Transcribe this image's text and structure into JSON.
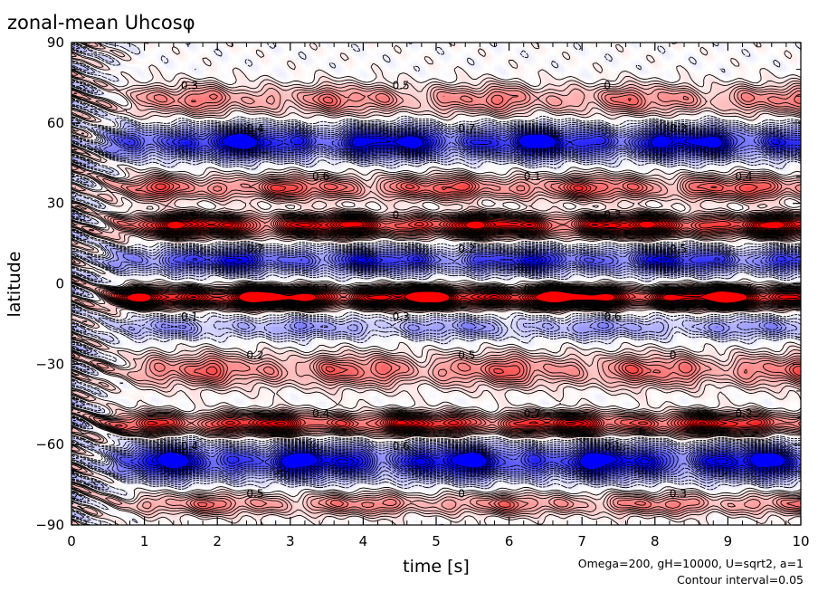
{
  "chart_data": {
    "type": "heatmap",
    "title": "zonal-mean Uhcosφ",
    "xlabel": "time [s]",
    "ylabel": "latitude",
    "xlim": [
      0,
      10
    ],
    "ylim": [
      -90,
      90
    ],
    "x_ticks": [
      "0",
      "1",
      "2",
      "3",
      "4",
      "5",
      "6",
      "7",
      "8",
      "9",
      "10"
    ],
    "y_ticks": [
      "90",
      "60",
      "30",
      "0",
      "−30",
      "−60",
      "−90"
    ],
    "annotations": [
      "Omega=200, gH=10000, U=sqrt2, a=1",
      "Contour interval=0.05"
    ],
    "contour_labels": [
      "0.1",
      "0.2",
      "0.3",
      "0.4",
      "0.5",
      "0.6",
      "0.7",
      "0"
    ],
    "colors": {
      "positive": "#ff0000",
      "negative": "#0000ff",
      "neutral": "#ffffff",
      "contour": "#000000"
    },
    "bands": [
      {
        "lat": 69,
        "width": 5.5,
        "amp": 0.3
      },
      {
        "lat": 53,
        "width": 5.5,
        "amp": -0.7
      },
      {
        "lat": 36,
        "width": 4.5,
        "amp": 0.4
      },
      {
        "lat": 22,
        "width": 4,
        "amp": 0.7
      },
      {
        "lat": 9,
        "width": 4.5,
        "amp": -0.55
      },
      {
        "lat": -5,
        "width": 3.5,
        "amp": 0.9
      },
      {
        "lat": -16,
        "width": 4,
        "amp": -0.25
      },
      {
        "lat": -32,
        "width": 6,
        "amp": 0.35
      },
      {
        "lat": -52,
        "width": 4,
        "amp": 0.6
      },
      {
        "lat": -66,
        "width": 6,
        "amp": -0.7
      },
      {
        "lat": -82,
        "width": 4,
        "amp": 0.3
      }
    ]
  }
}
